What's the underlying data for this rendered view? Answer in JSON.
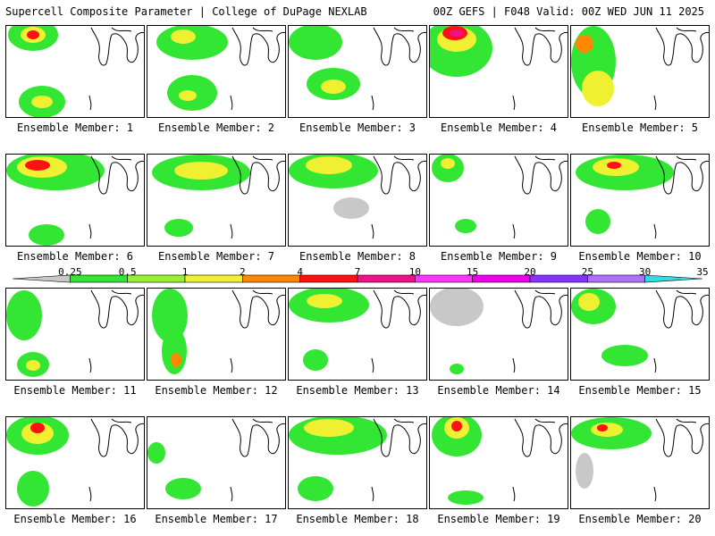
{
  "header": {
    "left_title": "Supercell Composite Parameter | College of DuPage NEXLAB",
    "right_title": "00Z GEFS | F048 Valid: 00Z WED JUN 11 2025"
  },
  "legend": {
    "thresholds": [
      "0.25",
      "0.5",
      "1",
      "2",
      "4",
      "7",
      "10",
      "15",
      "20",
      "25",
      "30",
      "35"
    ],
    "colors": [
      "#c8c8c8",
      "#33e633",
      "#99f033",
      "#f0f033",
      "#ff8800",
      "#ff1111",
      "#ee1188",
      "#ff33ff",
      "#ee00ee",
      "#8833ff",
      "#b070ff",
      "#33dddd"
    ]
  },
  "panels": [
    {
      "label": "Ensemble Member: 1"
    },
    {
      "label": "Ensemble Member: 2"
    },
    {
      "label": "Ensemble Member: 3"
    },
    {
      "label": "Ensemble Member: 4"
    },
    {
      "label": "Ensemble Member: 5"
    },
    {
      "label": "Ensemble Member: 6"
    },
    {
      "label": "Ensemble Member: 7"
    },
    {
      "label": "Ensemble Member: 8"
    },
    {
      "label": "Ensemble Member: 9"
    },
    {
      "label": "Ensemble Member: 10"
    },
    {
      "label": "Ensemble Member: 11"
    },
    {
      "label": "Ensemble Member: 12"
    },
    {
      "label": "Ensemble Member: 13"
    },
    {
      "label": "Ensemble Member: 14"
    },
    {
      "label": "Ensemble Member: 15"
    },
    {
      "label": "Ensemble Member: 16"
    },
    {
      "label": "Ensemble Member: 17"
    },
    {
      "label": "Ensemble Member: 18"
    },
    {
      "label": "Ensemble Member: 19"
    },
    {
      "label": "Ensemble Member: 20"
    }
  ]
}
